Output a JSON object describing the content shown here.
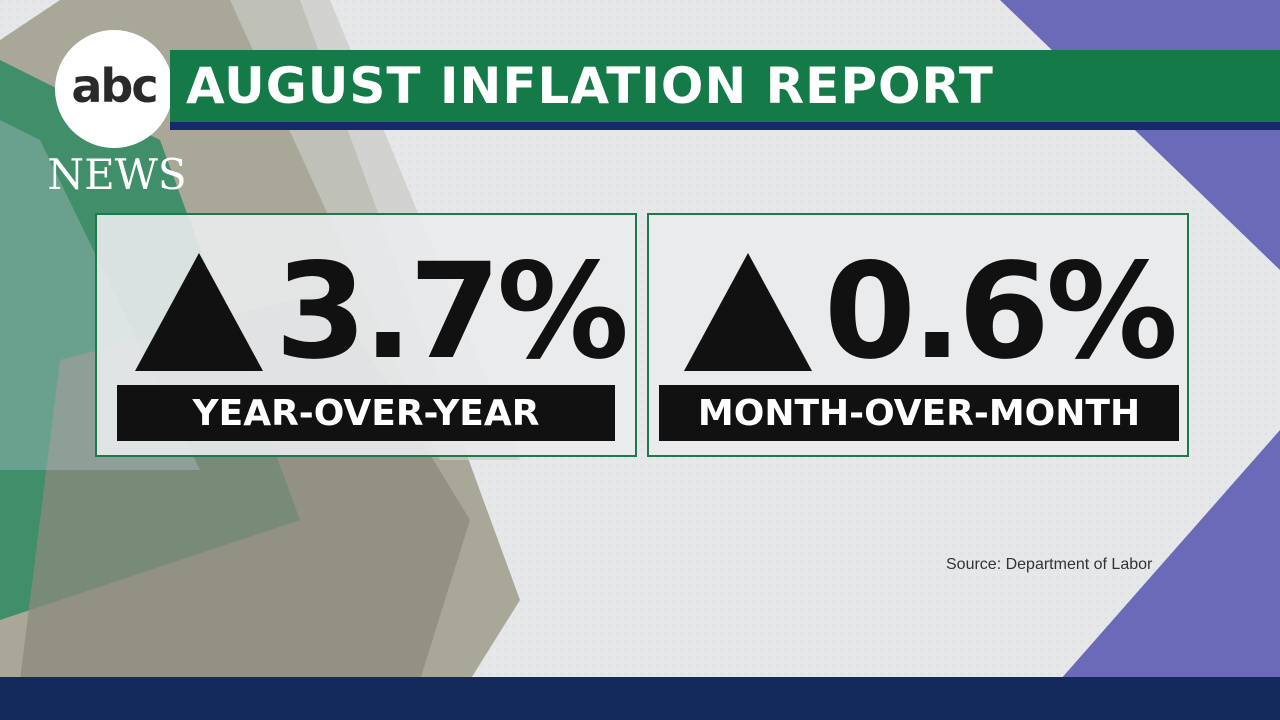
{
  "brand": {
    "logo_text": "abc",
    "logo_subtext": "NEWS"
  },
  "title": "AUGUST INFLATION REPORT",
  "stats": [
    {
      "value": "3.7%",
      "label": "YEAR-OVER-YEAR",
      "direction_icon": "up-triangle-icon"
    },
    {
      "value": "0.6%",
      "label": "MONTH-OVER-MONTH",
      "direction_icon": "up-triangle-icon"
    }
  ],
  "source": "Source: Department of Labor",
  "colors": {
    "banner_green": "#137a48",
    "banner_navy": "#16296b",
    "card_border": "#1e7a4d",
    "label_black": "#111111",
    "side_purple": "#6a6ab8",
    "bottom_bar": "#152a5c",
    "background": "#e6e7e9"
  }
}
